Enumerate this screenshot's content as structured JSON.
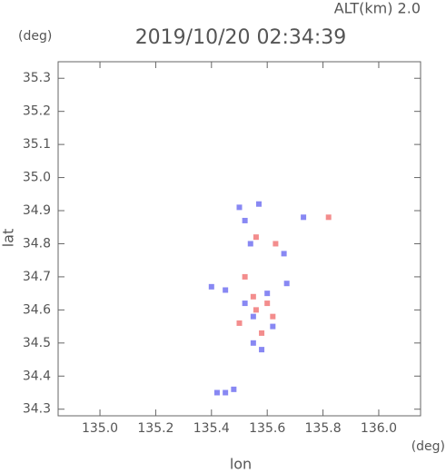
{
  "chart_data": {
    "type": "scatter",
    "header": "ALT(km) 2.0",
    "title": "2019/10/20 02:34:39",
    "y_unit": "(deg)",
    "x_unit": "(deg)",
    "xlabel": "lon",
    "ylabel": "lat",
    "xlim": [
      134.85,
      136.15
    ],
    "ylim": [
      34.28,
      35.35
    ],
    "xticks": [
      {
        "value": 135.0,
        "label": "135.0"
      },
      135.2,
      135.4,
      135.6,
      135.8,
      {
        "value": 136.0,
        "label": "136.0"
      }
    ],
    "yticks": [
      34.3,
      34.4,
      34.5,
      34.6,
      34.7,
      34.8,
      34.9,
      {
        "value": 35.0,
        "label": "35.0"
      },
      35.1,
      35.2,
      35.3
    ],
    "series": [
      {
        "color": "#6a6af0",
        "x": [
          135.5,
          135.52,
          135.54,
          135.66,
          135.73,
          135.4,
          135.45,
          135.6,
          135.67,
          135.55,
          135.62,
          135.55,
          135.45,
          135.42,
          135.48,
          135.57,
          135.52,
          135.58
        ],
        "values": [
          34.91,
          34.87,
          34.8,
          34.77,
          34.88,
          34.67,
          34.66,
          34.65,
          34.68,
          34.58,
          34.55,
          34.5,
          34.35,
          34.35,
          34.36,
          34.92,
          34.62,
          34.48
        ]
      },
      {
        "color": "#f07070",
        "x": [
          135.82,
          135.63,
          135.52,
          135.56,
          135.6,
          135.58,
          135.5,
          135.55,
          135.62,
          135.56
        ],
        "values": [
          34.88,
          34.8,
          34.7,
          34.6,
          34.62,
          34.53,
          34.56,
          34.64,
          34.58,
          34.82
        ]
      }
    ]
  }
}
